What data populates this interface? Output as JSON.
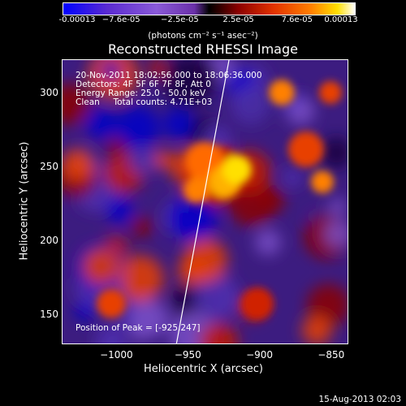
{
  "colorbar": {
    "ticks": [
      "-0.00013",
      "−7.6e-05",
      "−2.5e-05",
      "2.5e-05",
      "7.6e-05",
      "0.00013"
    ],
    "units": "(photons cm⁻² s⁻¹ asec⁻²)"
  },
  "chart_data": {
    "type": "heatmap",
    "title": "Reconstructed RHESSI Image",
    "xlabel": "Heliocentric X (arcsec)",
    "ylabel": "Heliocentric Y (arcsec)",
    "xlim": [
      -1038,
      -838
    ],
    "ylim": [
      130,
      323
    ],
    "xticks": [
      -1000,
      -950,
      -900,
      -850
    ],
    "yticks": [
      150,
      200,
      250,
      300
    ],
    "colorbar_range": [
      -0.00013,
      0.00013
    ],
    "peak": [
      -925,
      247
    ],
    "annotations": {
      "line1": "20-Nov-2011 18:02:56.000 to 18:06:36.000",
      "line2": "Detectors: 4F 5F 6F 7F 8F, Att 0",
      "line3": "Energy Range: 25.0 - 50.0 keV",
      "line4": "Clean     Total counts: 4.71E+03",
      "peak_text": "Position of Peak = [-925,247]"
    }
  },
  "footer": "15-Aug-2013 02:03"
}
